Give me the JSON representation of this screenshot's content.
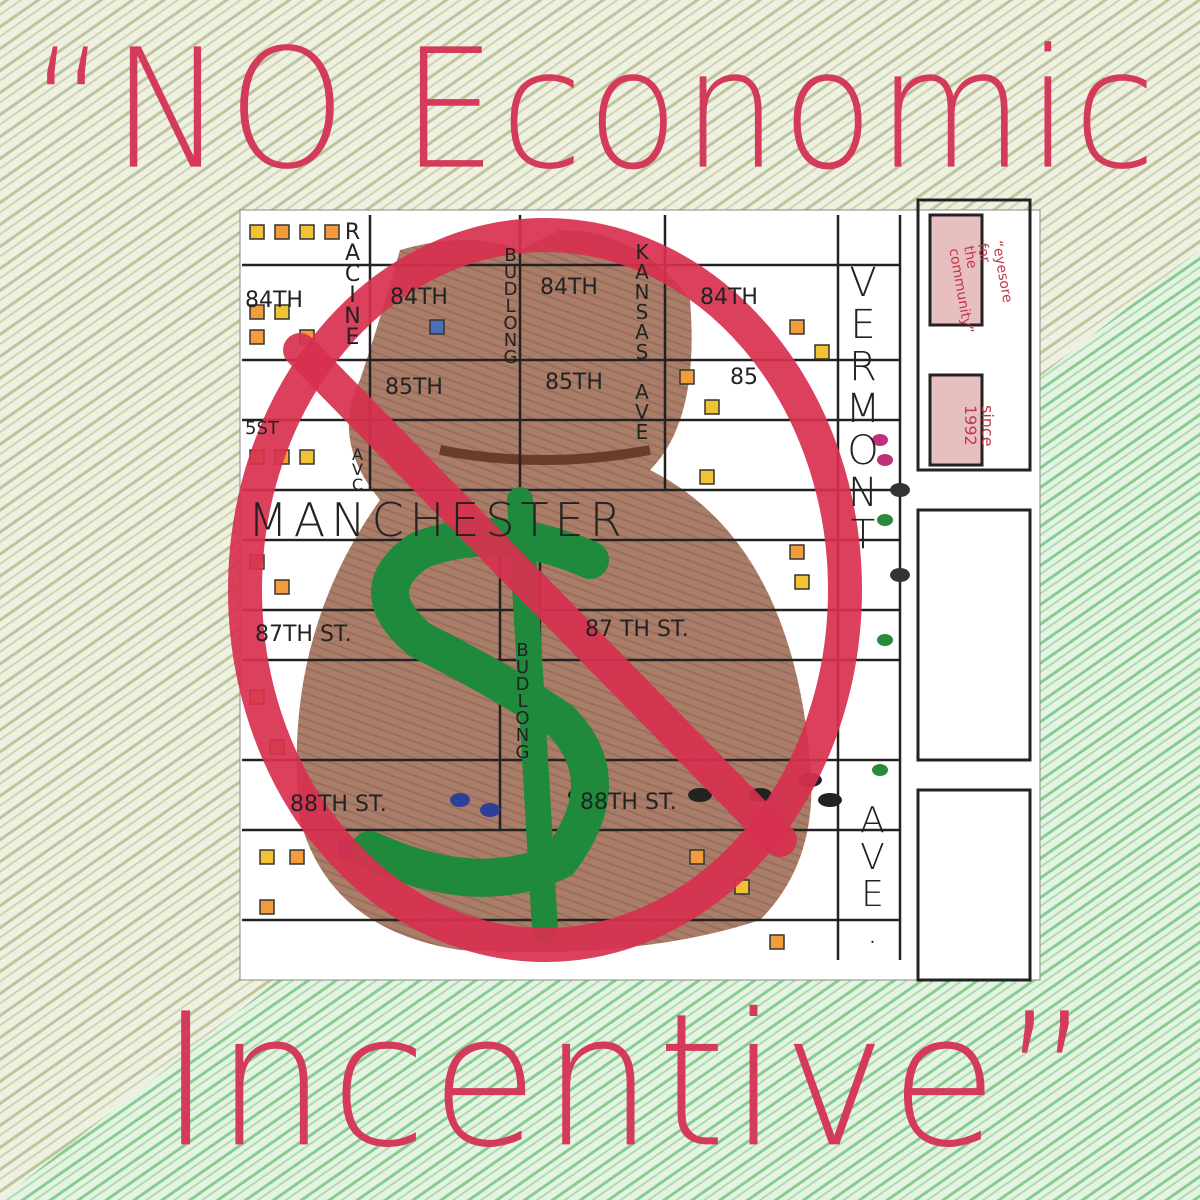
{
  "title": {
    "line1": "“NO Economic",
    "line2": "Incentive”"
  },
  "map": {
    "streets": {
      "84a": "84TH",
      "84b": "84TH",
      "84c": "84TH",
      "84d": "84TH",
      "85a": "85TH",
      "85b": "85TH",
      "85c": "85TH",
      "85d": "85",
      "85e": "5ST",
      "manchester": "MANCHESTER",
      "87a": "87TH ST.",
      "87b": "87 TH ST.",
      "88": "88TH ST.",
      "88b": "88TH ST.",
      "vermont": "VERMONT",
      "ave": "AVE.",
      "racine": "RACINE",
      "avc": "AVC",
      "kansas": "KANSAS AVE",
      "budlong": "BUDLONG",
      "budlong2": "BUDLONG"
    },
    "notes": {
      "n1": "“eyesore for the community”",
      "n2": "since 1992"
    }
  },
  "colors": {
    "red": "#d8304f",
    "green": "#1f8a3c",
    "brown": "#8a5a44",
    "paper": "#ffffff"
  }
}
